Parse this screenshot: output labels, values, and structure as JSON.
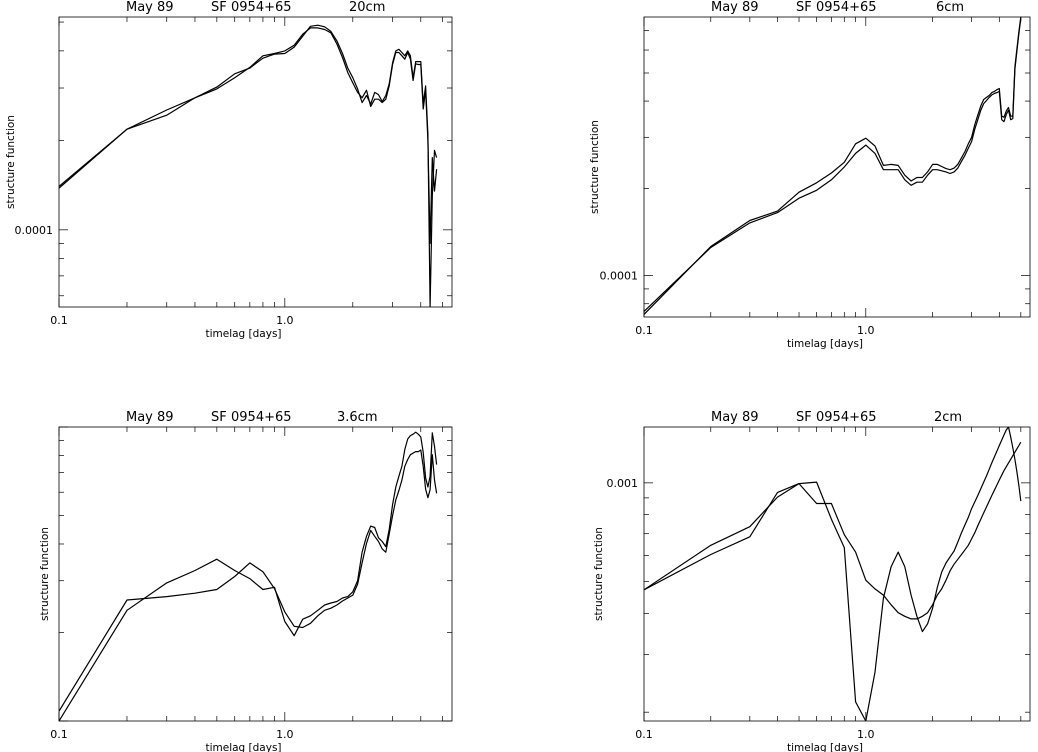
{
  "chart_data": [
    {
      "type": "line",
      "title": [
        "May 89",
        "SF",
        "0954+65",
        "20cm"
      ],
      "xlabel": "timelag [days]",
      "ylabel": "structure function",
      "xscale": "log",
      "yscale": "log",
      "xlim": [
        0.1,
        5.5
      ],
      "ylim": [
        5.5e-05,
        0.00052
      ],
      "x_tick_labels": [
        "0.1",
        "1.0"
      ],
      "y_tick_labels": [
        "0.0001"
      ],
      "series": [
        {
          "x": [
            0.1,
            0.2,
            0.3,
            0.4,
            0.5,
            0.6,
            0.7,
            0.8,
            0.9,
            1.0,
            1.1,
            1.2,
            1.3,
            1.4,
            1.5,
            1.6,
            1.7,
            1.8,
            1.9,
            2.0,
            2.1,
            2.2,
            2.3,
            2.4,
            2.5,
            2.6,
            2.7,
            2.8,
            2.9,
            3.0,
            3.1,
            3.2,
            3.3,
            3.4,
            3.5,
            3.6,
            3.7,
            3.8,
            3.9,
            4.0,
            4.1,
            4.2,
            4.3,
            4.4,
            4.5,
            4.6,
            4.7
          ],
          "y": [
            0.000138,
            0.000218,
            0.000253,
            0.000278,
            0.000298,
            0.000325,
            0.000352,
            0.000385,
            0.000392,
            0.0004,
            0.000418,
            0.000455,
            0.000478,
            0.000478,
            0.000472,
            0.00046,
            0.000422,
            0.00038,
            0.000338,
            0.000312,
            0.00029,
            0.000278,
            0.000295,
            0.00026,
            0.000275,
            0.000275,
            0.000268,
            0.000275,
            0.000305,
            0.00036,
            0.000395,
            0.000395,
            0.000385,
            0.000375,
            0.000395,
            0.000375,
            0.000318,
            0.000362,
            0.00036,
            0.00036,
            0.000255,
            0.000295,
            0.0002,
            9e-05,
            0.000175,
            0.000135,
            0.00016
          ]
        },
        {
          "x": [
            0.1,
            0.2,
            0.3,
            0.4,
            0.5,
            0.6,
            0.7,
            0.8,
            0.9,
            1.0,
            1.1,
            1.2,
            1.3,
            1.4,
            1.5,
            1.6,
            1.7,
            1.8,
            1.9,
            2.0,
            2.1,
            2.2,
            2.3,
            2.4,
            2.5,
            2.6,
            2.7,
            2.8,
            2.9,
            3.0,
            3.1,
            3.2,
            3.3,
            3.4,
            3.5,
            3.6,
            3.7,
            3.8,
            3.9,
            4.0,
            4.1,
            4.2,
            4.3,
            4.4,
            4.5,
            4.6,
            4.7
          ],
          "y": [
            0.00014,
            0.000218,
            0.000243,
            0.000278,
            0.000302,
            0.000335,
            0.00035,
            0.000378,
            0.00039,
            0.000392,
            0.000412,
            0.000448,
            0.000484,
            0.000488,
            0.000482,
            0.000465,
            0.000432,
            0.000392,
            0.00035,
            0.000325,
            0.000298,
            0.000268,
            0.000283,
            0.000265,
            0.00029,
            0.000285,
            0.00027,
            0.000283,
            0.00031,
            0.000365,
            0.0004,
            0.000405,
            0.000395,
            0.000385,
            0.0004,
            0.000385,
            0.000325,
            0.000368,
            0.000368,
            0.000368,
            0.000265,
            0.000305,
            0.00021,
            5.5e-05,
            0.00013,
            0.000185,
            0.000175
          ]
        }
      ]
    },
    {
      "type": "line",
      "title": [
        "May 89",
        "SF",
        "0954+65",
        "6cm"
      ],
      "xlabel": "timelag [days]",
      "ylabel": "structure function",
      "xscale": "log",
      "yscale": "log",
      "xlim": [
        0.1,
        5.5
      ],
      "ylim": [
        7.2e-05,
        0.00078
      ],
      "x_tick_labels": [
        "0.1",
        "1.0"
      ],
      "y_tick_labels": [
        "0.0001"
      ],
      "series": [
        {
          "x": [
            0.1,
            0.2,
            0.3,
            0.4,
            0.5,
            0.6,
            0.7,
            0.8,
            0.9,
            1.0,
            1.1,
            1.2,
            1.3,
            1.4,
            1.5,
            1.6,
            1.7,
            1.8,
            1.9,
            2.0,
            2.1,
            2.2,
            2.3,
            2.4,
            2.5,
            2.6,
            2.7,
            2.8,
            2.9,
            3.0,
            3.1,
            3.2,
            3.3,
            3.4,
            3.5,
            3.6,
            3.7,
            3.8,
            3.9,
            4.0,
            4.1,
            4.2,
            4.3,
            4.4,
            4.5,
            4.6,
            4.7,
            4.8,
            4.9,
            5.0
          ],
          "y": [
            7.53e-05,
            0.000125,
            0.000152,
            0.000165,
            0.000185,
            0.000197,
            0.000214,
            0.000237,
            0.000264,
            0.000282,
            0.000264,
            0.000232,
            0.000232,
            0.000232,
            0.000214,
            0.000205,
            0.00021,
            0.00021,
            0.000222,
            0.000232,
            0.000232,
            0.00023,
            0.000228,
            0.000225,
            0.000228,
            0.000235,
            0.000248,
            0.00026,
            0.000275,
            0.00029,
            0.00032,
            0.000345,
            0.000372,
            0.000392,
            0.000402,
            0.000412,
            0.00042,
            0.000425,
            0.000428,
            0.000432,
            0.000345,
            0.00034,
            0.00036,
            0.000372,
            0.000345,
            0.000348,
            0.000515,
            0.000595,
            0.000685,
            0.00077
          ]
        },
        {
          "x": [
            0.1,
            0.2,
            0.3,
            0.4,
            0.5,
            0.6,
            0.7,
            0.8,
            0.9,
            1.0,
            1.1,
            1.2,
            1.3,
            1.4,
            1.5,
            1.6,
            1.7,
            1.8,
            1.9,
            2.0,
            2.1,
            2.2,
            2.3,
            2.4,
            2.5,
            2.6,
            2.7,
            2.8,
            2.9,
            3.0,
            3.1,
            3.2,
            3.3,
            3.4,
            3.5,
            3.6,
            3.7,
            3.8,
            3.9,
            4.0,
            4.1,
            4.2,
            4.3,
            4.4,
            4.5,
            4.6,
            4.7,
            4.8,
            4.9,
            5.0
          ],
          "y": [
            7.35e-05,
            0.000126,
            0.000155,
            0.000167,
            0.000194,
            0.000209,
            0.000226,
            0.000246,
            0.000285,
            0.000298,
            0.00028,
            0.00024,
            0.000242,
            0.00024,
            0.000222,
            0.000212,
            0.000218,
            0.000218,
            0.000228,
            0.000242,
            0.000242,
            0.000238,
            0.000234,
            0.000232,
            0.000235,
            0.000242,
            0.000255,
            0.000268,
            0.000285,
            0.0003,
            0.000332,
            0.000358,
            0.000385,
            0.000405,
            0.000412,
            0.000418,
            0.000428,
            0.000432,
            0.000438,
            0.000442,
            0.000355,
            0.000352,
            0.00037,
            0.00038,
            0.000355,
            0.000355,
            0.000525,
            0.000605,
            0.000695,
            0.00078
          ]
        }
      ]
    },
    {
      "type": "line",
      "title": [
        "May 89",
        "SF",
        "0954+65",
        "3.6cm"
      ],
      "xlabel": "timelag [days]",
      "ylabel": "structure function",
      "xscale": "log",
      "yscale": "log",
      "xlim": [
        0.1,
        5.5
      ],
      "ylim": [
        0.0001,
        0.001
      ],
      "x_tick_labels": [
        "0.1",
        "1.0"
      ],
      "y_tick_labels": [],
      "series": [
        {
          "x": [
            0.1,
            0.2,
            0.3,
            0.4,
            0.5,
            0.6,
            0.7,
            0.8,
            0.9,
            1.0,
            1.1,
            1.2,
            1.3,
            1.4,
            1.5,
            1.6,
            1.7,
            1.8,
            1.9,
            2.0,
            2.1,
            2.2,
            2.3,
            2.4,
            2.5,
            2.6,
            2.7,
            2.8,
            2.9,
            3.0,
            3.1,
            3.2,
            3.3,
            3.4,
            3.5,
            3.6,
            3.7,
            3.8,
            3.9,
            4.0,
            4.1,
            4.2,
            4.3,
            4.4,
            4.5,
            4.6,
            4.7
          ],
          "y": [
            0.000108,
            0.000258,
            0.000265,
            0.000272,
            0.00028,
            0.00031,
            0.000345,
            0.000322,
            0.000282,
            0.000235,
            0.00021,
            0.000208,
            0.000215,
            0.000228,
            0.000238,
            0.000242,
            0.000248,
            0.000256,
            0.000262,
            0.000268,
            0.000292,
            0.000345,
            0.000402,
            0.000445,
            0.000425,
            0.000408,
            0.000385,
            0.000375,
            0.000432,
            0.0005,
            0.000565,
            0.000608,
            0.00066,
            0.000735,
            0.000775,
            0.000805,
            0.000815,
            0.000825,
            0.000825,
            0.000835,
            0.000735,
            0.000615,
            0.000575,
            0.000612,
            0.000805,
            0.00066,
            0.000595
          ]
        },
        {
          "x": [
            0.1,
            0.2,
            0.3,
            0.4,
            0.5,
            0.6,
            0.7,
            0.8,
            0.9,
            1.0,
            1.1,
            1.2,
            1.3,
            1.4,
            1.5,
            1.6,
            1.7,
            1.8,
            1.9,
            2.0,
            2.1,
            2.2,
            2.3,
            2.4,
            2.5,
            2.6,
            2.7,
            2.8,
            2.9,
            3.0,
            3.1,
            3.2,
            3.3,
            3.4,
            3.5,
            3.6,
            3.7,
            3.8,
            3.9,
            4.0,
            4.1,
            4.2,
            4.3,
            4.4,
            4.5,
            4.6,
            4.7
          ],
          "y": [
            0.0001,
            0.000238,
            0.000295,
            0.000325,
            0.000355,
            0.000325,
            0.000305,
            0.00028,
            0.000285,
            0.000218,
            0.000195,
            0.000222,
            0.000228,
            0.000238,
            0.000248,
            0.000252,
            0.000255,
            0.000262,
            0.000265,
            0.000275,
            0.0003,
            0.000375,
            0.000425,
            0.00046,
            0.000455,
            0.00042,
            0.000408,
            0.000392,
            0.000448,
            0.000545,
            0.000625,
            0.00068,
            0.000735,
            0.000838,
            0.00091,
            0.000935,
            0.000945,
            0.00096,
            0.000945,
            0.000925,
            0.00082,
            0.000672,
            0.000625,
            0.00068,
            0.000955,
            0.00086,
            0.000745
          ]
        }
      ]
    },
    {
      "type": "line",
      "title": [
        "May 89",
        "SF",
        "0954+65",
        "2cm"
      ],
      "xlabel": "timelag [days]",
      "ylabel": "structure function",
      "xscale": "log",
      "yscale": "log",
      "xlim": [
        0.1,
        5.5
      ],
      "ylim": [
        0.000188,
        0.00148
      ],
      "x_tick_labels": [
        "0.1",
        "1.0"
      ],
      "y_tick_labels": [
        "0.001"
      ],
      "series": [
        {
          "x": [
            0.1,
            0.2,
            0.3,
            0.4,
            0.5,
            0.6,
            0.7,
            0.8,
            0.9,
            1.0,
            1.1,
            1.2,
            1.3,
            1.4,
            1.5,
            1.6,
            1.7,
            1.8,
            1.9,
            2.0,
            2.1,
            2.2,
            2.3,
            2.4,
            2.5,
            2.6,
            2.7,
            2.8,
            2.9,
            3.0,
            3.1,
            3.2,
            3.3,
            3.4,
            3.5,
            3.6,
            3.7,
            3.8,
            3.9,
            4.0,
            4.1,
            4.2,
            4.3,
            4.4,
            4.5,
            4.6,
            4.7,
            4.8,
            4.9,
            5.0
          ],
          "y": [
            0.000472,
            0.000645,
            0.000735,
            0.000905,
            0.000995,
            0.000865,
            0.000865,
            0.000695,
            0.000615,
            0.000505,
            0.000475,
            0.000455,
            0.000425,
            0.000402,
            0.000392,
            0.000385,
            0.000385,
            0.000392,
            0.000402,
            0.000425,
            0.000455,
            0.000475,
            0.000505,
            0.00054,
            0.000565,
            0.000585,
            0.000605,
            0.000625,
            0.000645,
            0.000675,
            0.000705,
            0.00074,
            0.000775,
            0.00081,
            0.000845,
            0.00088,
            0.000915,
            0.00095,
            0.000985,
            0.00102,
            0.001055,
            0.00109,
            0.00112,
            0.00115,
            0.00118,
            0.00121,
            0.00124,
            0.00127,
            0.0013,
            0.00133
          ]
        },
        {
          "x": [
            0.1,
            0.2,
            0.3,
            0.4,
            0.5,
            0.6,
            0.7,
            0.8,
            0.9,
            1.0,
            1.1,
            1.2,
            1.3,
            1.4,
            1.5,
            1.6,
            1.7,
            1.8,
            1.9,
            2.0,
            2.1,
            2.2,
            2.3,
            2.4,
            2.5,
            2.6,
            2.7,
            2.8,
            2.9,
            3.0,
            3.1,
            3.2,
            3.3,
            3.4,
            3.5,
            3.6,
            3.7,
            3.8,
            3.9,
            4.0,
            4.1,
            4.2,
            4.3,
            4.4,
            4.5,
            4.6,
            4.7,
            4.8,
            4.9,
            5.0
          ],
          "y": [
            0.000472,
            0.000605,
            0.000685,
            0.000935,
            0.000995,
            0.001005,
            0.000775,
            0.000635,
            0.000215,
            0.000188,
            0.000265,
            0.000445,
            0.000555,
            0.000615,
            0.000555,
            0.000455,
            0.000392,
            0.000352,
            0.000372,
            0.000415,
            0.00048,
            0.000535,
            0.00057,
            0.000595,
            0.00062,
            0.00066,
            0.000705,
            0.000745,
            0.000785,
            0.000835,
            0.000875,
            0.000915,
            0.00096,
            0.001005,
            0.00105,
            0.0011,
            0.00115,
            0.0012,
            0.00125,
            0.0013,
            0.00135,
            0.0014,
            0.00145,
            0.00148,
            0.00138,
            0.00128,
            0.00118,
            0.00108,
            0.00098,
            0.00088
          ]
        }
      ]
    }
  ]
}
